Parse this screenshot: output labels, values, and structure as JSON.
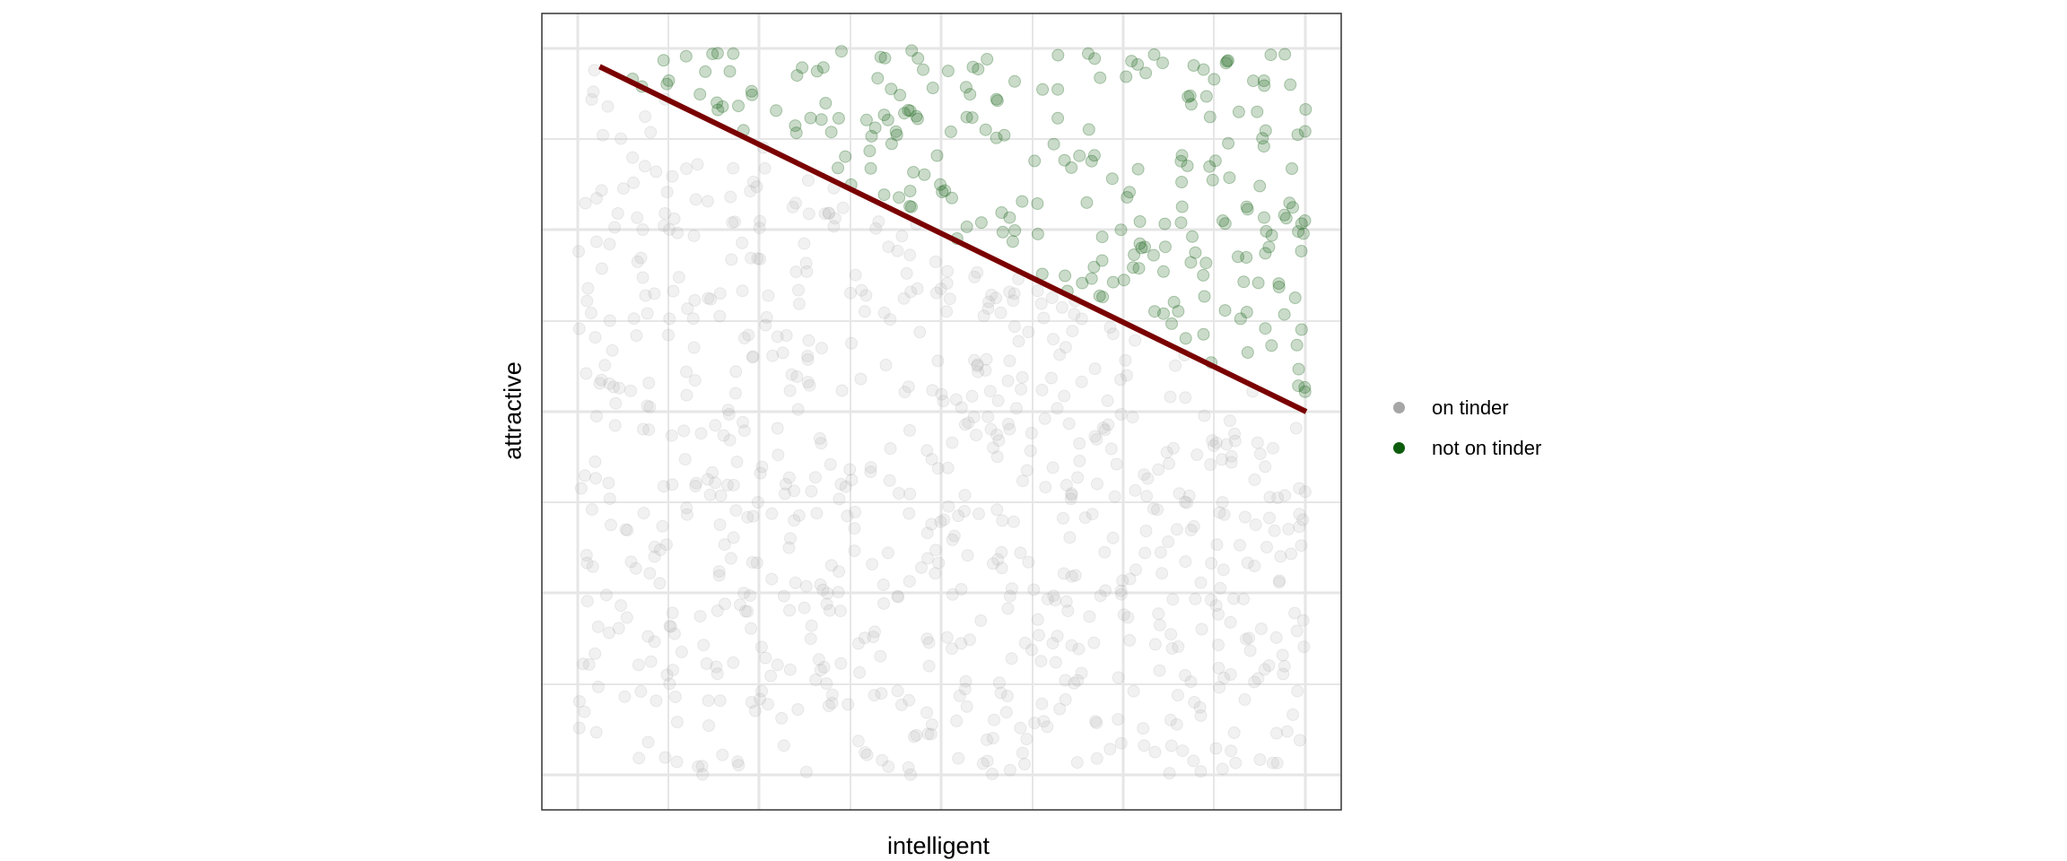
{
  "chart_data": {
    "type": "scatter",
    "title": "",
    "xlabel": "intelligent",
    "ylabel": "attractive",
    "xlim": [
      0,
      1
    ],
    "ylim": [
      0,
      1
    ],
    "grid": true,
    "legend_position": "right",
    "series": [
      {
        "name": "on tinder",
        "color": "#a6a6a6",
        "point_opacity": 0.2,
        "note_region": "points below the fitted line"
      },
      {
        "name": "not on tinder",
        "color": "#0d5c0d",
        "point_opacity": 0.2,
        "note_region": "points above the fitted line"
      }
    ],
    "fitted_line": {
      "color": "#7a0000",
      "x": [
        0.03,
        1.0
      ],
      "y": [
        0.975,
        0.5
      ]
    },
    "n_points": 1000
  },
  "legend": {
    "items": [
      {
        "label": "on tinder",
        "color": "#a6a6a6"
      },
      {
        "label": "not on tinder",
        "color": "#0d5c0d"
      }
    ]
  }
}
